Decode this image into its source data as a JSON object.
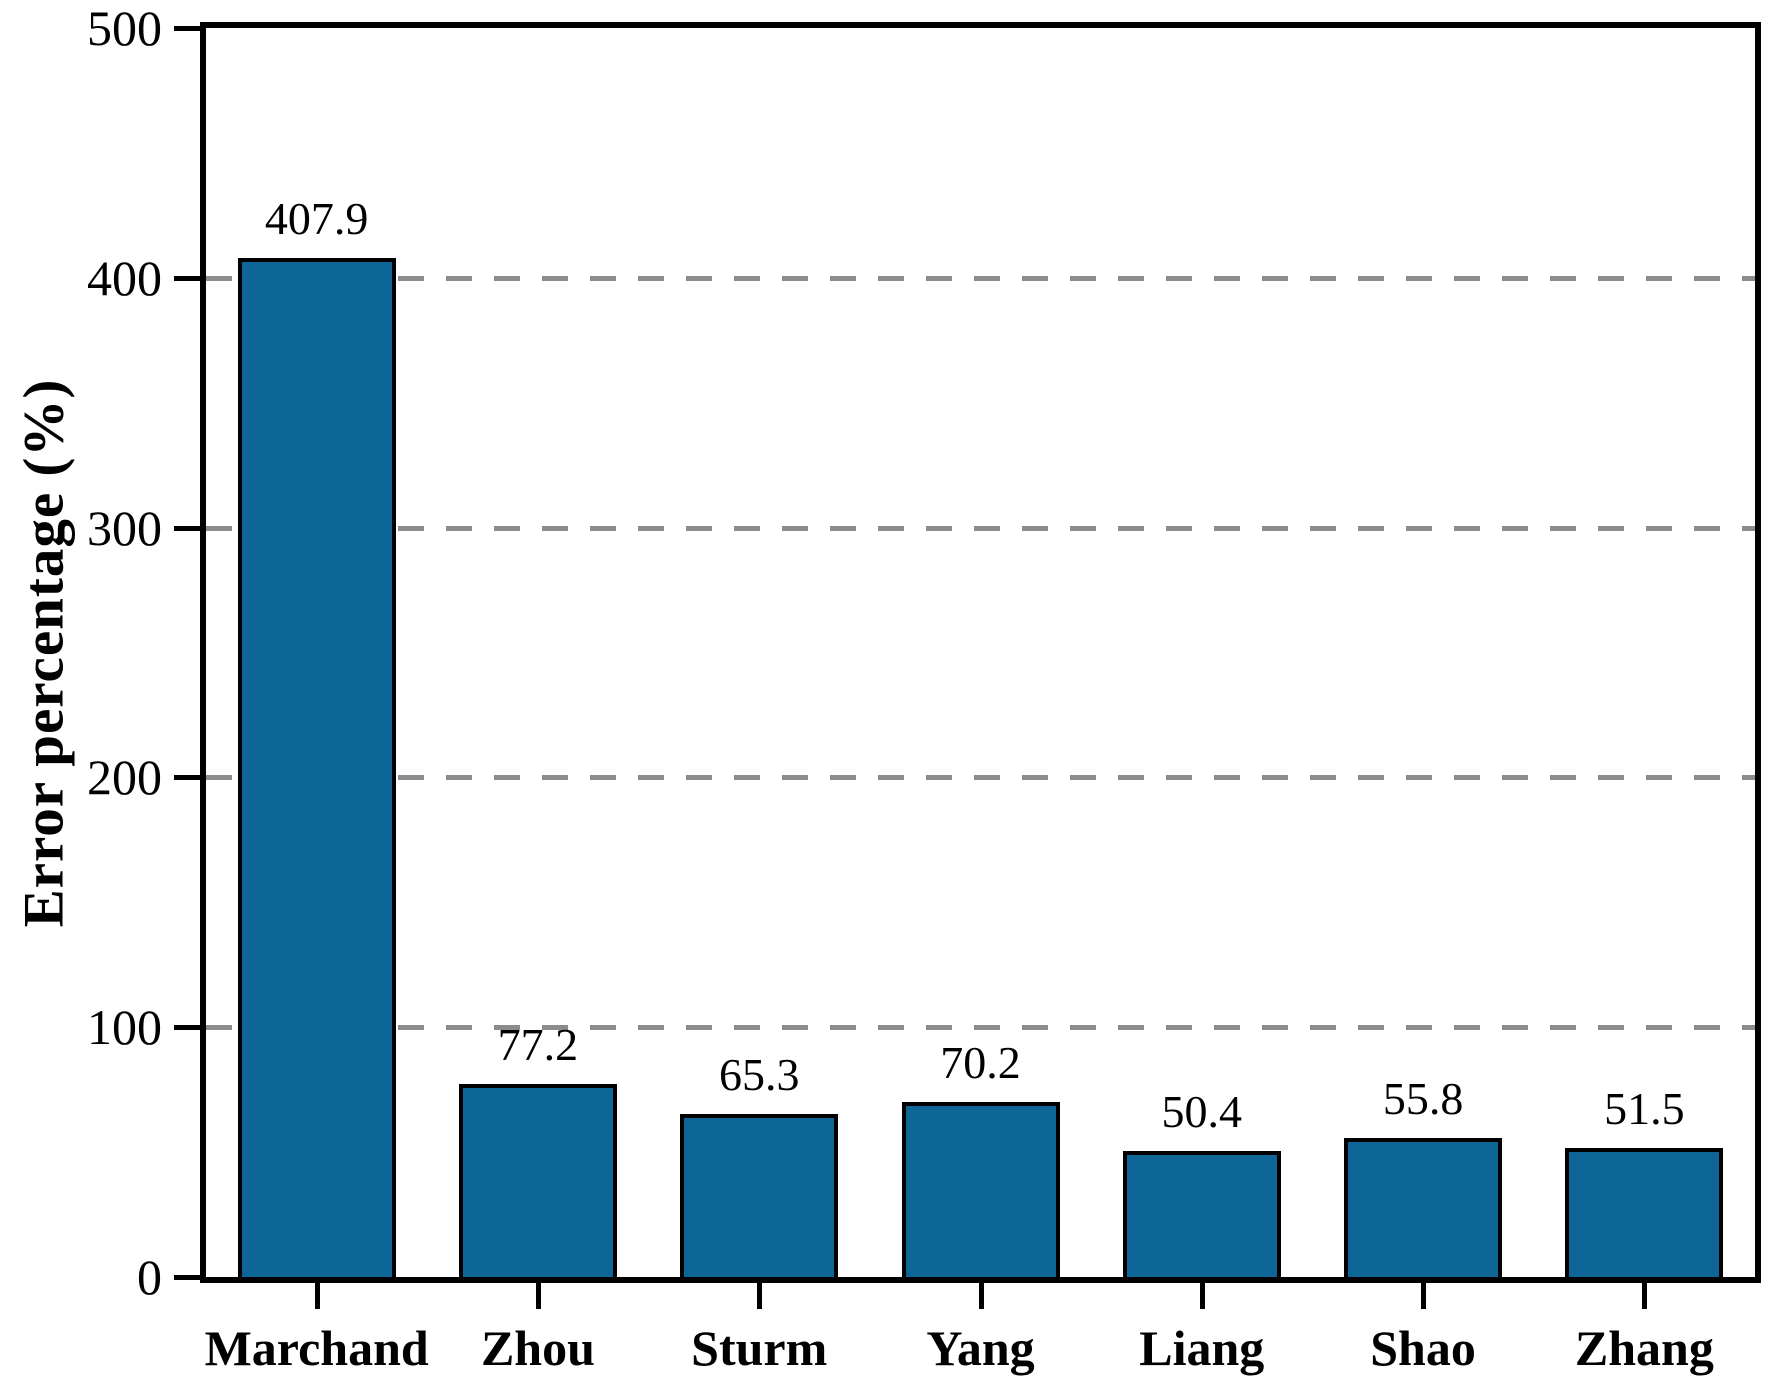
{
  "chart_data": {
    "type": "bar",
    "categories": [
      "Marchand",
      "Zhou",
      "Sturm",
      "Yang",
      "Liang",
      "Shao",
      "Zhang"
    ],
    "values": [
      407.9,
      77.2,
      65.3,
      70.2,
      50.4,
      55.8,
      51.5
    ],
    "value_labels": [
      "407.9",
      "77.2",
      "65.3",
      "70.2",
      "50.4",
      "55.8",
      "51.5"
    ],
    "title": "",
    "xlabel": "",
    "ylabel": "Error percentage (%)",
    "ylim": [
      0,
      500
    ],
    "yticks": [
      "0",
      "100",
      "200",
      "300",
      "400",
      "500"
    ],
    "ytick_values": [
      0,
      100,
      200,
      300,
      400,
      500
    ],
    "gridline_values": [
      100,
      200,
      300,
      400
    ],
    "grid_style": "dashed",
    "legend_position": "none",
    "colors": {
      "bar_fill": "#0e6698",
      "bar_border": "#000000",
      "grid": "#8c8c8c",
      "axis": "#000000",
      "background": "#ffffff"
    }
  }
}
